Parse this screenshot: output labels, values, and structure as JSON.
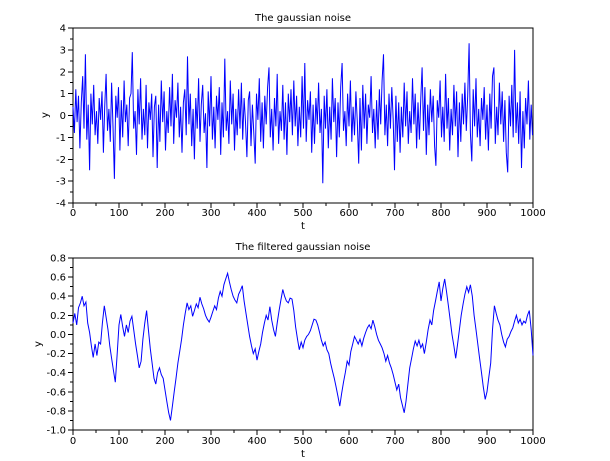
{
  "page": {
    "background_color": "#ffffff",
    "text_color": "#000000",
    "accent_color": "#0000ff"
  },
  "chart_data": [
    {
      "type": "line",
      "title": "The gaussian noise",
      "xlabel": "t",
      "ylabel": "y",
      "xlim": [
        0,
        1000
      ],
      "ylim": [
        -4,
        4
      ],
      "grid": false,
      "legend_position": "none",
      "line_color": "#0000ff",
      "axis_color": "#000000",
      "minor_x_step": 50,
      "minor_y_step": 0.5,
      "xticks": {
        "values": [
          0,
          100,
          200,
          300,
          400,
          500,
          600,
          700,
          800,
          900,
          1000
        ],
        "labels": [
          "0",
          "100",
          "200",
          "300",
          "400",
          "500",
          "600",
          "700",
          "800",
          "900",
          "1000"
        ]
      },
      "yticks": {
        "values": [
          4,
          3,
          2,
          1,
          0,
          -1,
          -2,
          -3,
          -4
        ],
        "labels": [
          "4",
          "3",
          "2",
          "1",
          "0",
          "-1",
          "-2",
          "-3",
          "-4"
        ]
      },
      "x_step": 3,
      "values": [
        0.4,
        -0.8,
        1.2,
        -0.3,
        0.9,
        -1.5,
        0.6,
        1.8,
        -0.6,
        2.8,
        -1.1,
        0.5,
        -2.5,
        1.0,
        -0.4,
        1.4,
        -0.9,
        0.2,
        -1.3,
        0.8,
        -0.2,
        1.1,
        -1.7,
        0.4,
        1.9,
        -0.7,
        0.3,
        -1.2,
        1.5,
        -0.5,
        -2.9,
        0.9,
        -0.1,
        1.3,
        -1.6,
        0.7,
        -1.0,
        1.6,
        -0.3,
        0.5,
        -1.4,
        0.8,
        1.0,
        2.9,
        -0.6,
        0.2,
        -1.8,
        1.2,
        -0.4,
        1.7,
        -1.1,
        0.3,
        -0.9,
        1.4,
        -1.5,
        0.6,
        -0.2,
        1.0,
        -1.9,
        0.4,
        0.9,
        -2.4,
        0.5,
        -1.2,
        1.6,
        -0.3,
        1.1,
        -1.6,
        0.2,
        -0.8,
        1.3,
        -0.5,
        1.9,
        -1.3,
        0.7,
        -0.1,
        1.5,
        -1.0,
        0.4,
        -1.7,
        0.6,
        1.2,
        -0.9,
        2.7,
        -0.4,
        1.0,
        -1.4,
        0.3,
        -2.0,
        0.8,
        -0.6,
        1.7,
        -1.2,
        0.5,
        1.4,
        -0.8,
        0.1,
        -2.4,
        1.1,
        -0.5,
        1.8,
        -1.1,
        0.4,
        -1.5,
        0.9,
        -0.2,
        1.3,
        -1.8,
        0.6,
        -1.0,
        2.6,
        -0.7,
        0.2,
        -1.3,
        1.6,
        -0.4,
        1.0,
        -1.6,
        0.3,
        -0.9,
        1.2,
        -0.6,
        1.5,
        -1.1,
        0.8,
        -0.3,
        -1.9,
        0.7,
        1.1,
        -1.4,
        0.5,
        -0.8,
        -2.2,
        1.0,
        -0.2,
        1.7,
        -1.2,
        0.6,
        -1.5,
        0.9,
        -0.4,
        1.3,
        2.2,
        -1.0,
        0.3,
        -1.6,
        0.8,
        -0.5,
        1.9,
        -1.3,
        0.2,
        -0.7,
        1.4,
        -1.1,
        0.6,
        -1.8,
        1.0,
        -0.3,
        1.2,
        -0.9,
        1.6,
        -0.5,
        0.9,
        -1.4,
        0.4,
        -1.0,
        1.8,
        -0.6,
        2.4,
        -1.2,
        0.7,
        -0.2,
        1.1,
        -1.7,
        0.5,
        -1.3,
        0.8,
        -0.4,
        1.5,
        -0.8,
        0.3,
        -3.1,
        0.9,
        -0.6,
        1.2,
        -1.5,
        0.4,
        -1.1,
        1.7,
        -0.3,
        0.8,
        -1.9,
        0.6,
        -1.0,
        1.3,
        2.4,
        -0.7,
        0.2,
        -1.4,
        1.0,
        -0.5,
        1.6,
        -1.2,
        0.4,
        -0.9,
        1.1,
        -0.3,
        -2.2,
        0.8,
        -1.6,
        1.4,
        -0.6,
        1.0,
        -1.3,
        0.5,
        -0.1,
        1.8,
        -0.8,
        0.3,
        -1.5,
        0.7,
        -1.1,
        1.2,
        -0.4,
        1.6,
        2.8,
        -0.9,
        0.5,
        -1.4,
        1.0,
        -0.6,
        1.3,
        -0.2,
        -2.5,
        0.9,
        -1.2,
        0.6,
        -1.7,
        0.4,
        -1.0,
        1.5,
        -0.5,
        1.1,
        -1.3,
        0.2,
        -0.8,
        1.7,
        -0.4,
        1.0,
        -1.5,
        0.6,
        -1.1,
        0.8,
        2.2,
        -0.7,
        1.3,
        -1.8,
        0.5,
        -0.9,
        1.2,
        -0.3,
        0.9,
        -1.4,
        -2.3,
        0.7,
        -0.1,
        1.6,
        -1.0,
        0.4,
        -1.2,
        1.9,
        -0.6,
        0.8,
        -1.6,
        0.3,
        -0.9,
        1.4,
        -0.5,
        1.1,
        -1.9,
        0.6,
        -1.2,
        1.0,
        -0.4,
        1.5,
        -0.7,
        0.9,
        3.3,
        -0.8,
        -2.1,
        1.2,
        -0.5,
        1.7,
        -1.0,
        0.3,
        -1.4,
        0.8,
        -0.2,
        1.3,
        -1.1,
        0.5,
        -1.6,
        1.0,
        -0.6,
        1.8,
        2.2,
        -1.3,
        0.4,
        -0.9,
        1.5,
        -0.4,
        1.1,
        -1.2,
        0.7,
        -1.7,
        -2.6,
        0.9,
        -0.5,
        1.4,
        -1.0,
        3.0,
        -0.8,
        0.6,
        -1.3,
        1.1,
        -2.4,
        0.2,
        -1.5,
        0.8,
        -0.4,
        1.6,
        -1.1,
        0.5,
        -0.9
      ]
    },
    {
      "type": "line",
      "title": "The filtered gaussian noise",
      "xlabel": "t",
      "ylabel": "y",
      "xlim": [
        0,
        1000
      ],
      "ylim": [
        -1.0,
        0.8
      ],
      "grid": false,
      "legend_position": "none",
      "line_color": "#0000ff",
      "axis_color": "#000000",
      "minor_x_step": 50,
      "minor_y_step": 0.1,
      "xticks": {
        "values": [
          0,
          100,
          200,
          300,
          400,
          500,
          600,
          700,
          800,
          900,
          1000
        ],
        "labels": [
          "0",
          "100",
          "200",
          "300",
          "400",
          "500",
          "600",
          "700",
          "800",
          "900",
          "1000"
        ]
      },
      "yticks": {
        "values": [
          0.8,
          0.6,
          0.4,
          0.2,
          0.0,
          -0.2,
          -0.4,
          -0.6,
          -0.8,
          -1.0
        ],
        "labels": [
          "0.8",
          "0.6",
          "0.4",
          "0.2",
          "0.0",
          "-0.2",
          "-0.4",
          "-0.6",
          "-0.8",
          "-1.0"
        ]
      },
      "x_step": 4,
      "values": [
        0.12,
        0.22,
        0.1,
        0.28,
        0.33,
        0.4,
        0.3,
        0.34,
        0.12,
        0.02,
        -0.12,
        -0.24,
        -0.1,
        -0.22,
        -0.08,
        -0.1,
        0.12,
        0.3,
        0.18,
        0.05,
        -0.12,
        -0.25,
        -0.38,
        -0.5,
        -0.2,
        0.1,
        0.21,
        0.08,
        -0.02,
        0.1,
        0.02,
        0.14,
        0.19,
        0.05,
        -0.1,
        -0.22,
        -0.35,
        -0.28,
        -0.05,
        0.12,
        0.25,
        0.05,
        -0.15,
        -0.3,
        -0.46,
        -0.52,
        -0.4,
        -0.35,
        -0.42,
        -0.46,
        -0.58,
        -0.7,
        -0.82,
        -0.9,
        -0.75,
        -0.6,
        -0.46,
        -0.3,
        -0.18,
        -0.05,
        0.1,
        0.22,
        0.33,
        0.26,
        0.3,
        0.19,
        0.25,
        0.32,
        0.28,
        0.39,
        0.32,
        0.27,
        0.2,
        0.16,
        0.13,
        0.18,
        0.24,
        0.3,
        0.26,
        0.38,
        0.45,
        0.4,
        0.52,
        0.58,
        0.64,
        0.55,
        0.47,
        0.4,
        0.36,
        0.33,
        0.42,
        0.46,
        0.51,
        0.35,
        0.22,
        0.1,
        -0.02,
        -0.12,
        -0.2,
        -0.15,
        -0.27,
        -0.18,
        -0.1,
        0.02,
        0.12,
        0.2,
        0.15,
        0.29,
        0.15,
        0.05,
        -0.02,
        0.12,
        0.25,
        0.36,
        0.47,
        0.4,
        0.35,
        0.33,
        0.38,
        0.37,
        0.25,
        0.08,
        -0.05,
        -0.16,
        -0.08,
        -0.14,
        -0.06,
        -0.02,
        0.0,
        0.04,
        0.1,
        0.16,
        0.15,
        0.1,
        0.02,
        -0.06,
        -0.12,
        -0.08,
        -0.16,
        -0.2,
        -0.3,
        -0.38,
        -0.46,
        -0.55,
        -0.65,
        -0.75,
        -0.62,
        -0.5,
        -0.4,
        -0.28,
        -0.32,
        -0.18,
        -0.1,
        -0.02,
        -0.06,
        -0.1,
        -0.05,
        -0.12,
        -0.04,
        0.02,
        0.07,
        0.1,
        0.06,
        0.15,
        0.08,
        0.0,
        -0.06,
        -0.1,
        -0.14,
        -0.2,
        -0.28,
        -0.22,
        -0.3,
        -0.35,
        -0.42,
        -0.5,
        -0.58,
        -0.52,
        -0.66,
        -0.74,
        -0.82,
        -0.7,
        -0.52,
        -0.35,
        -0.25,
        -0.15,
        -0.07,
        -0.12,
        -0.06,
        -0.14,
        -0.1,
        -0.2,
        -0.08,
        0.05,
        0.15,
        0.1,
        0.25,
        0.35,
        0.45,
        0.55,
        0.35,
        0.48,
        0.58,
        0.45,
        0.3,
        0.15,
        0.0,
        -0.12,
        -0.25,
        -0.1,
        0.05,
        0.2,
        0.32,
        0.42,
        0.5,
        0.44,
        0.52,
        0.4,
        0.2,
        0.05,
        -0.1,
        -0.25,
        -0.4,
        -0.55,
        -0.68,
        -0.6,
        -0.45,
        -0.3,
        0.05,
        0.3,
        0.22,
        0.15,
        0.1,
        0.0,
        -0.08,
        -0.13,
        -0.05,
        -0.02,
        0.03,
        0.07,
        0.14,
        0.2,
        0.12,
        0.16,
        0.1,
        0.14,
        0.12,
        0.2,
        0.25,
        0.05,
        -0.22
      ]
    }
  ]
}
